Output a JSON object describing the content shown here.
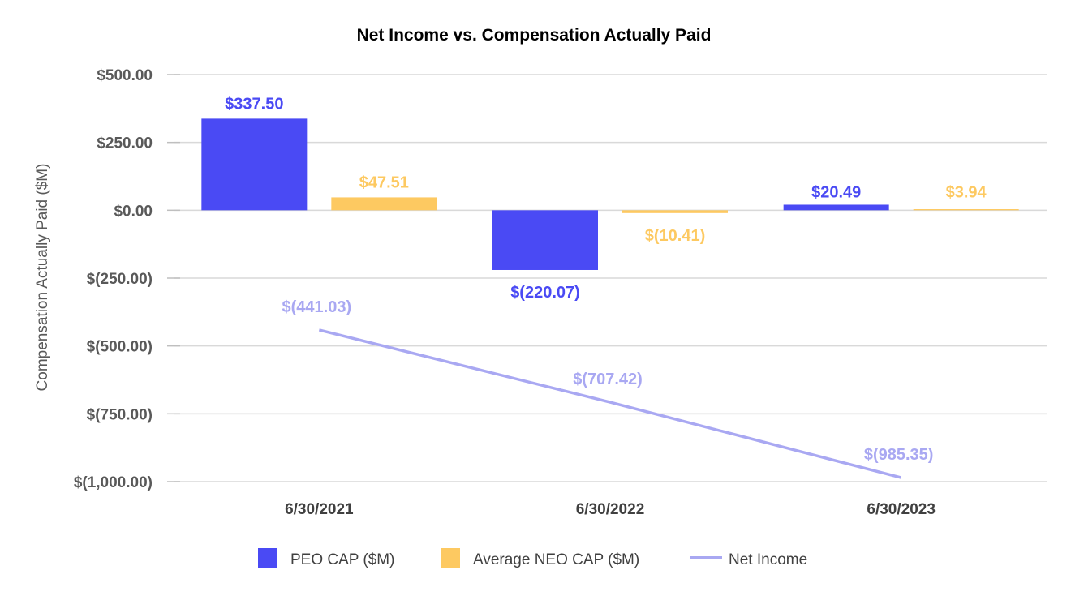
{
  "chart_data": {
    "type": "bar",
    "title": "Net Income vs. Compensation Actually Paid",
    "ylabel": "Compensation Actually Paid ($M)",
    "xlabel": "",
    "categories": [
      "6/30/2021",
      "6/30/2022",
      "6/30/2023"
    ],
    "ylim": [
      -1000,
      500
    ],
    "yticks": [
      500,
      250,
      0,
      -250,
      -500,
      -750,
      -1000
    ],
    "ytick_labels": [
      "$500.00",
      "$250.00",
      "$0.00",
      "$(250.00)",
      "$(500.00)",
      "$(750.00)",
      "$(1,000.00)"
    ],
    "grid": true,
    "legend_position": "bottom",
    "series": [
      {
        "name": "PEO CAP ($M)",
        "kind": "bar",
        "color": "#4a4af4",
        "values": [
          337.5,
          -220.07,
          20.49
        ],
        "labels": [
          "$337.50",
          "$(220.07)",
          "$20.49"
        ]
      },
      {
        "name": "Average NEO CAP ($M)",
        "kind": "bar",
        "color": "#fdc961",
        "values": [
          47.51,
          -10.41,
          3.94
        ],
        "labels": [
          "$47.51",
          "$(10.41)",
          "$3.94"
        ]
      },
      {
        "name": "Net Income",
        "kind": "line",
        "color": "#a9a8f2",
        "values": [
          -441.03,
          -707.42,
          -985.35
        ],
        "labels": [
          "$(441.03)",
          "$(707.42)",
          "$(985.35)"
        ]
      }
    ]
  }
}
